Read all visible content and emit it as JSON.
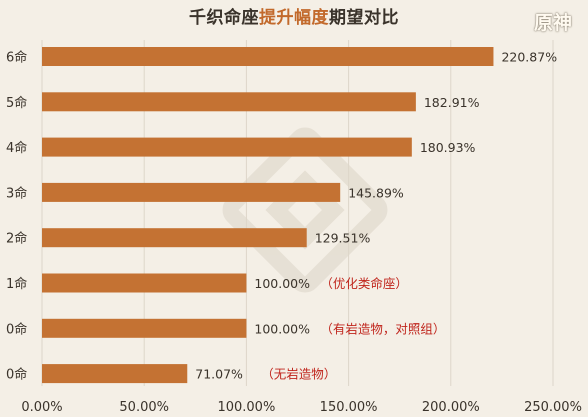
{
  "title": {
    "prefix": "千织命座",
    "highlight": "提升幅度",
    "suffix": "期望对比"
  },
  "logo": {
    "text": "原神"
  },
  "colors": {
    "bar": "#c47233",
    "highlight": "#c2692b",
    "note": "#c0261d",
    "background": "#f4efe6"
  },
  "chart_data": {
    "type": "bar",
    "orientation": "horizontal",
    "title": "千织命座提升幅度期望对比",
    "categories": [
      "6命",
      "5命",
      "4命",
      "3命",
      "2命",
      "1命",
      "0命",
      "0命"
    ],
    "values": [
      220.87,
      182.91,
      180.93,
      145.89,
      129.51,
      100.0,
      100.0,
      71.07
    ],
    "value_labels": [
      "220.87%",
      "182.91%",
      "180.93%",
      "145.89%",
      "129.51%",
      "100.00%",
      "100.00%",
      "71.07%"
    ],
    "annotations": [
      "",
      "",
      "",
      "",
      "",
      "（优化类命座）",
      "（有岩造物，对照组）",
      "（无岩造物）"
    ],
    "xlim": [
      0,
      250
    ],
    "xticks": [
      0,
      50,
      100,
      150,
      200,
      250
    ],
    "xtick_labels": [
      "0.00%",
      "50.00%",
      "100.00%",
      "150.00%",
      "200.00%",
      "250.00%"
    ],
    "grid": true,
    "legend": "none"
  }
}
